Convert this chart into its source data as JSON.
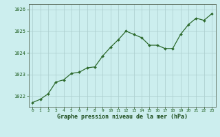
{
  "x": [
    0,
    1,
    2,
    3,
    4,
    5,
    6,
    7,
    8,
    9,
    10,
    11,
    12,
    13,
    14,
    15,
    16,
    17,
    18,
    19,
    20,
    21,
    22,
    23
  ],
  "y": [
    1021.7,
    1021.85,
    1022.1,
    1022.65,
    1022.75,
    1023.05,
    1023.1,
    1023.3,
    1023.35,
    1023.85,
    1024.25,
    1024.6,
    1025.0,
    1024.85,
    1024.7,
    1024.35,
    1024.35,
    1024.2,
    1024.2,
    1024.85,
    1025.3,
    1025.6,
    1025.5,
    1025.8
  ],
  "line_color": "#2d6a2d",
  "marker_color": "#2d6a2d",
  "bg_color": "#cceeee",
  "grid_color": "#aacccc",
  "xlabel": "Graphe pression niveau de la mer (hPa)",
  "xlabel_color": "#1a4a1a",
  "tick_color": "#1a5a1a",
  "ylim_bottom": 1021.5,
  "ylim_top": 1026.25,
  "yticks": [
    1022,
    1023,
    1024,
    1025,
    1026
  ],
  "xticks": [
    0,
    1,
    2,
    3,
    4,
    5,
    6,
    7,
    8,
    9,
    10,
    11,
    12,
    13,
    14,
    15,
    16,
    17,
    18,
    19,
    20,
    21,
    22,
    23
  ],
  "axis_color": "#556655"
}
